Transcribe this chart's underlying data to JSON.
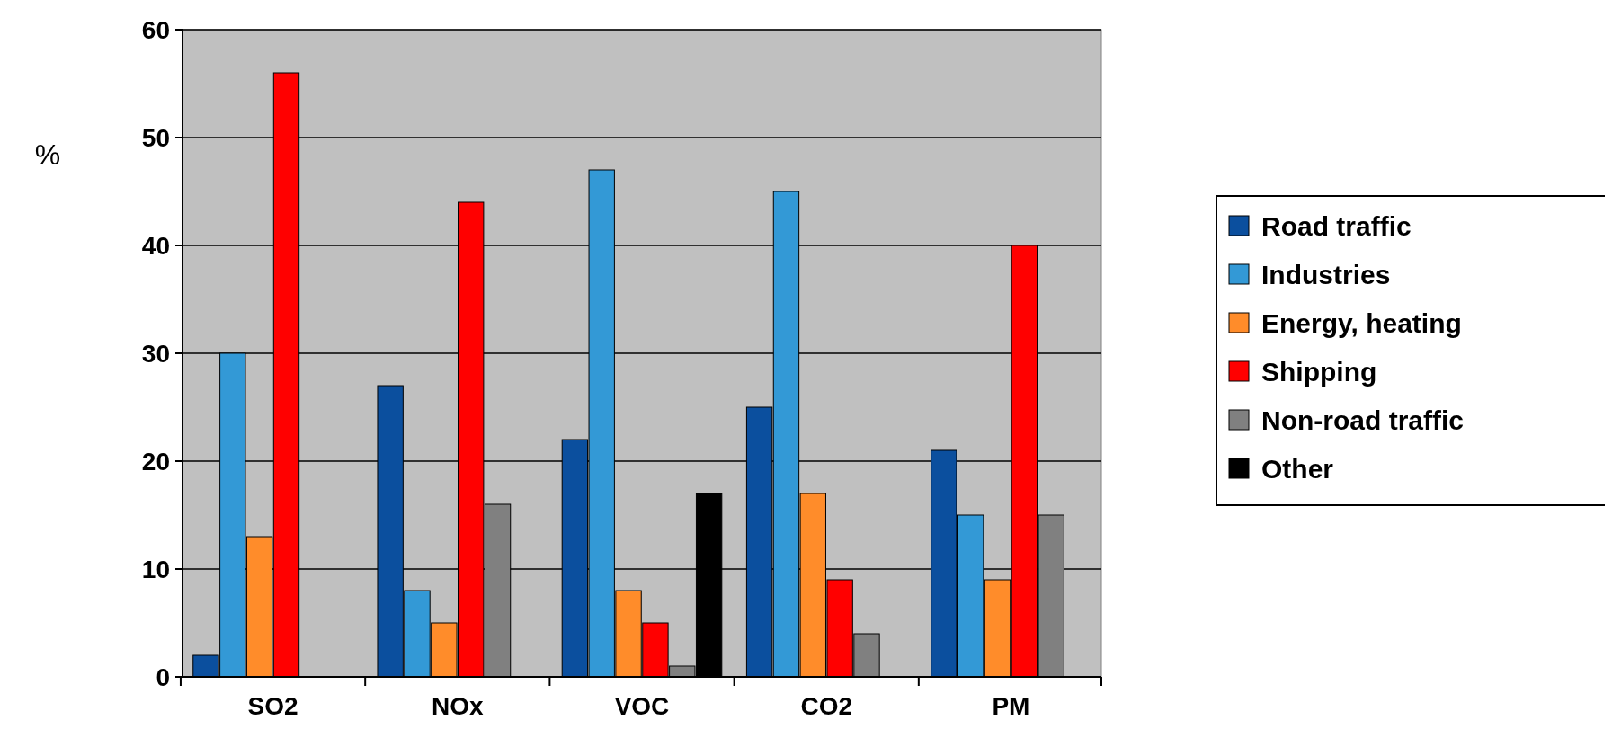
{
  "chart_data": {
    "type": "bar",
    "ylabel": "%",
    "categories": [
      "SO2",
      "NOx",
      "VOC",
      "CO2",
      "PM"
    ],
    "series": [
      {
        "name": "Road traffic",
        "color": "#0b4f9e",
        "values": [
          2,
          27,
          22,
          25,
          21
        ]
      },
      {
        "name": "Industries",
        "color": "#3399d6",
        "values": [
          30,
          8,
          47,
          45,
          15
        ]
      },
      {
        "name": "Energy, heating",
        "color": "#ff8c2a",
        "values": [
          13,
          5,
          8,
          17,
          9
        ]
      },
      {
        "name": "Shipping",
        "color": "#ff0000",
        "values": [
          56,
          44,
          5,
          9,
          40
        ]
      },
      {
        "name": "Non-road traffic",
        "color": "#808080",
        "values": [
          0,
          16,
          1,
          4,
          15
        ]
      },
      {
        "name": "Other",
        "color": "#000000",
        "values": [
          0,
          0,
          17,
          0,
          0
        ]
      }
    ],
    "ylim": [
      0,
      60
    ],
    "yticks": [
      0,
      10,
      20,
      30,
      40,
      50,
      60
    ],
    "grid": "y",
    "legend": "right"
  }
}
